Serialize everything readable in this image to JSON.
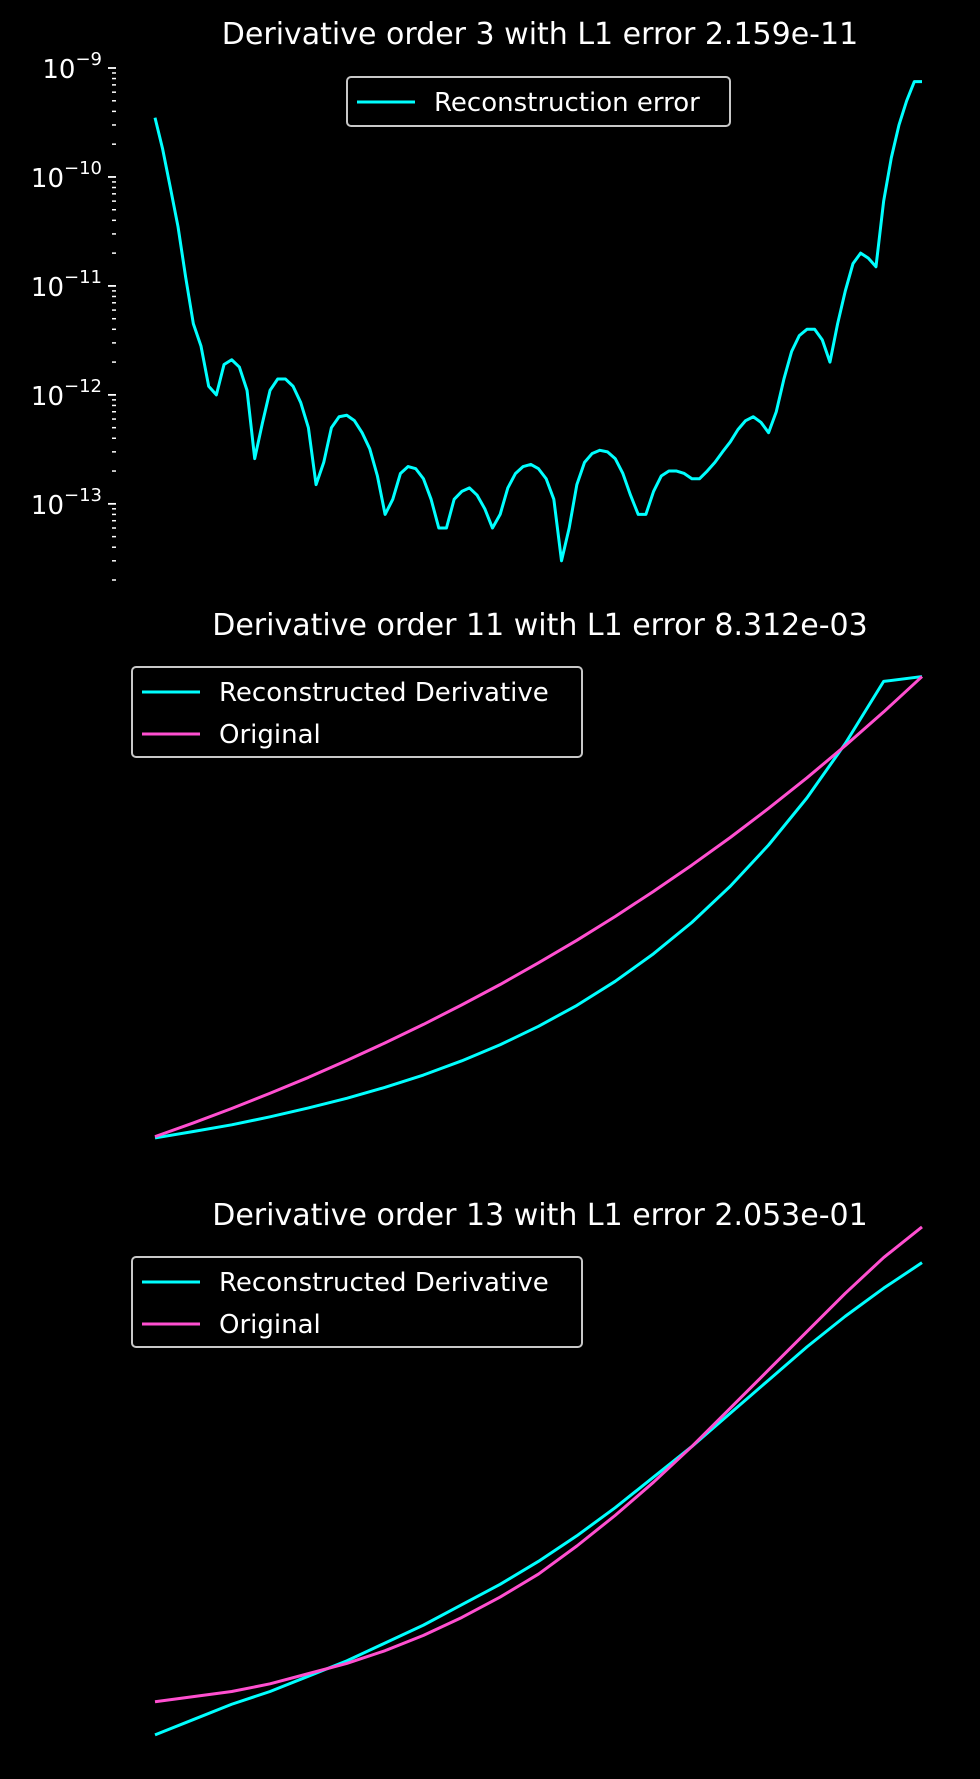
{
  "colors": {
    "background": "#000000",
    "text": "#ffffff",
    "reconstructed": "#00ffff",
    "original": "#ff4fd0",
    "legend_border": "#c8c8c8"
  },
  "chart_data": [
    {
      "type": "line",
      "title": "Derivative order 3 with L1 error 2.159e-11",
      "xlabel": "",
      "ylabel": "",
      "yscale": "log",
      "ylim": [
        2e-14,
        1e-09
      ],
      "xlim": [
        0,
        1
      ],
      "y_ticks": [
        1e-13,
        1e-12,
        1e-11,
        1e-10,
        1e-09
      ],
      "y_tick_labels": [
        {
          "base": "10",
          "exp": "−13"
        },
        {
          "base": "10",
          "exp": "−12"
        },
        {
          "base": "10",
          "exp": "−11"
        },
        {
          "base": "10",
          "exp": "−10"
        },
        {
          "base": "10",
          "exp": "−9"
        }
      ],
      "grid": false,
      "legend": {
        "position": "top-center",
        "entries": [
          "Reconstruction error"
        ]
      },
      "series": [
        {
          "name": "Reconstruction error",
          "color": "#00ffff",
          "x": [
            0.0,
            0.01,
            0.02,
            0.03,
            0.04,
            0.05,
            0.06,
            0.07,
            0.08,
            0.09,
            0.1,
            0.11,
            0.12,
            0.13,
            0.14,
            0.15,
            0.16,
            0.17,
            0.18,
            0.19,
            0.2,
            0.21,
            0.22,
            0.23,
            0.24,
            0.25,
            0.26,
            0.27,
            0.28,
            0.29,
            0.3,
            0.31,
            0.32,
            0.33,
            0.34,
            0.35,
            0.36,
            0.37,
            0.38,
            0.39,
            0.4,
            0.41,
            0.42,
            0.43,
            0.44,
            0.45,
            0.46,
            0.47,
            0.48,
            0.49,
            0.5,
            0.51,
            0.52,
            0.53,
            0.54,
            0.55,
            0.56,
            0.57,
            0.58,
            0.59,
            0.6,
            0.61,
            0.62,
            0.63,
            0.64,
            0.65,
            0.66,
            0.67,
            0.68,
            0.69,
            0.7,
            0.71,
            0.72,
            0.73,
            0.74,
            0.75,
            0.76,
            0.77,
            0.78,
            0.79,
            0.8,
            0.81,
            0.82,
            0.83,
            0.84,
            0.85,
            0.86,
            0.87,
            0.88,
            0.89,
            0.9,
            0.91,
            0.92,
            0.93,
            0.94,
            0.95,
            0.96,
            0.97,
            0.98,
            0.99,
            1.0
          ],
          "y": [
            3.5e-10,
            1.8e-10,
            8e-11,
            3.5e-11,
            1.2e-11,
            4.5e-12,
            2.8e-12,
            1.2e-12,
            1e-12,
            1.9e-12,
            2.1e-12,
            1.8e-12,
            1.1e-12,
            2.6e-13,
            5.5e-13,
            1.1e-12,
            1.4e-12,
            1.4e-12,
            1.2e-12,
            8.5e-13,
            5e-13,
            1.5e-13,
            2.4e-13,
            5e-13,
            6.3e-13,
            6.5e-13,
            5.8e-13,
            4.5e-13,
            3.2e-13,
            1.8e-13,
            8e-14,
            1.1e-13,
            1.9e-13,
            2.2e-13,
            2.1e-13,
            1.7e-13,
            1.1e-13,
            6e-14,
            6e-14,
            1.1e-13,
            1.3e-13,
            1.4e-13,
            1.2e-13,
            9e-14,
            6e-14,
            8e-14,
            1.4e-13,
            1.9e-13,
            2.2e-13,
            2.3e-13,
            2.1e-13,
            1.7e-13,
            1.1e-13,
            3e-14,
            6e-14,
            1.5e-13,
            2.4e-13,
            2.9e-13,
            3.1e-13,
            3e-13,
            2.6e-13,
            1.9e-13,
            1.2e-13,
            8e-14,
            8e-14,
            1.3e-13,
            1.8e-13,
            2e-13,
            2e-13,
            1.9e-13,
            1.7e-13,
            1.7e-13,
            2e-13,
            2.4e-13,
            3e-13,
            3.7e-13,
            4.8e-13,
            5.8e-13,
            6.3e-13,
            5.6e-13,
            4.5e-13,
            7e-13,
            1.4e-12,
            2.5e-12,
            3.5e-12,
            4e-12,
            4e-12,
            3.2e-12,
            2e-12,
            4.5e-12,
            9e-12,
            1.6e-11,
            2e-11,
            1.8e-11,
            1.5e-11,
            6e-11,
            1.5e-10,
            3e-10,
            5e-10,
            7.5e-10,
            7.5e-10
          ]
        }
      ]
    },
    {
      "type": "line",
      "title": "Derivative order 11 with L1 error 8.312e-03",
      "xlabel": "",
      "ylabel": "",
      "yscale": "linear",
      "xlim": [
        0,
        1
      ],
      "ylim": [
        0.95,
        2.75
      ],
      "axes_visible": false,
      "grid": false,
      "legend": {
        "position": "top-left",
        "entries": [
          "Reconstructed Derivative",
          "Original"
        ]
      },
      "series": [
        {
          "name": "Reconstructed Derivative",
          "color": "#00ffff",
          "x": [
            0.0,
            0.05,
            0.1,
            0.15,
            0.2,
            0.25,
            0.3,
            0.35,
            0.4,
            0.45,
            0.5,
            0.55,
            0.6,
            0.65,
            0.7,
            0.75,
            0.8,
            0.85,
            0.9,
            0.95,
            1.0
          ],
          "y": [
            0.995,
            1.019,
            1.044,
            1.074,
            1.107,
            1.143,
            1.184,
            1.23,
            1.283,
            1.343,
            1.412,
            1.49,
            1.58,
            1.683,
            1.8,
            1.935,
            2.089,
            2.265,
            2.468,
            2.7,
            2.718
          ]
        },
        {
          "name": "Original",
          "color": "#ff4fd0",
          "x": [
            0.0,
            0.05,
            0.1,
            0.15,
            0.2,
            0.25,
            0.3,
            0.35,
            0.4,
            0.45,
            0.5,
            0.55,
            0.6,
            0.65,
            0.7,
            0.75,
            0.8,
            0.85,
            0.9,
            0.95,
            1.0
          ],
          "y": [
            1.0,
            1.051,
            1.105,
            1.162,
            1.221,
            1.284,
            1.35,
            1.419,
            1.492,
            1.568,
            1.649,
            1.733,
            1.822,
            1.916,
            2.014,
            2.117,
            2.226,
            2.34,
            2.46,
            2.586,
            2.718
          ]
        }
      ]
    },
    {
      "type": "line",
      "title": "Derivative order 13 with L1 error 2.053e-01",
      "xlabel": "",
      "ylabel": "",
      "yscale": "linear",
      "xlim": [
        0,
        1
      ],
      "ylim": [
        0.85,
        2.75
      ],
      "axes_visible": false,
      "grid": false,
      "legend": {
        "position": "top-left",
        "entries": [
          "Reconstructed Derivative",
          "Original"
        ]
      },
      "series": [
        {
          "name": "Reconstructed Derivative",
          "color": "#00ffff",
          "x": [
            0.0,
            0.05,
            0.1,
            0.15,
            0.2,
            0.25,
            0.3,
            0.35,
            0.4,
            0.45,
            0.5,
            0.55,
            0.6,
            0.65,
            0.7,
            0.75,
            0.8,
            0.85,
            0.9,
            0.95,
            1.0
          ],
          "y": [
            0.87,
            0.93,
            0.99,
            1.04,
            1.1,
            1.16,
            1.23,
            1.3,
            1.38,
            1.46,
            1.55,
            1.65,
            1.76,
            1.88,
            2.0,
            2.13,
            2.26,
            2.39,
            2.51,
            2.62,
            2.72
          ]
        },
        {
          "name": "Original",
          "color": "#ff4fd0",
          "x": [
            0.0,
            0.05,
            0.1,
            0.15,
            0.2,
            0.25,
            0.3,
            0.35,
            0.4,
            0.45,
            0.5,
            0.55,
            0.6,
            0.65,
            0.7,
            0.75,
            0.8,
            0.85,
            0.9,
            0.95,
            1.0
          ],
          "y": [
            1.0,
            1.02,
            1.04,
            1.07,
            1.11,
            1.15,
            1.2,
            1.26,
            1.33,
            1.41,
            1.5,
            1.61,
            1.73,
            1.86,
            2.0,
            2.15,
            2.3,
            2.45,
            2.6,
            2.74,
            2.86
          ]
        }
      ]
    }
  ]
}
